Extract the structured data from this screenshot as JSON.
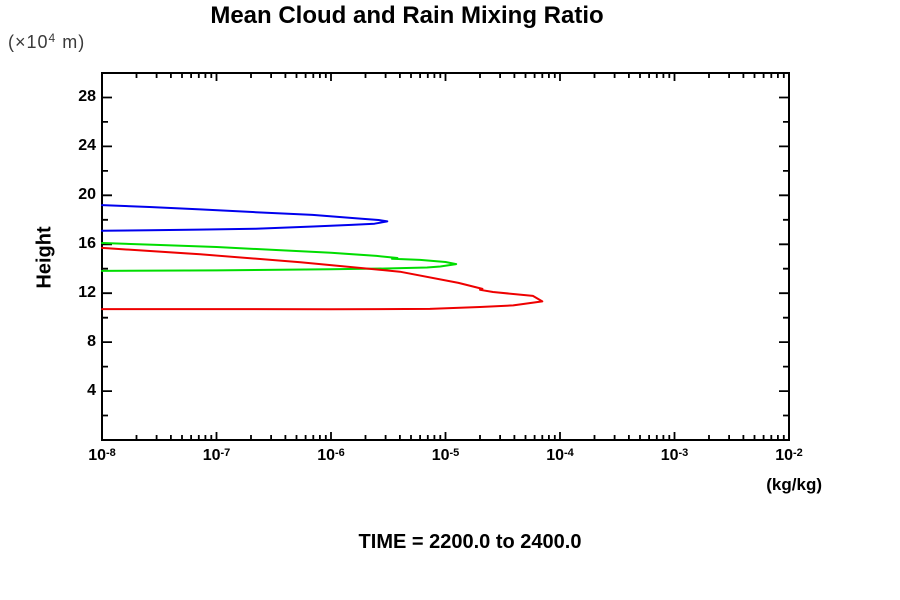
{
  "page": {
    "background": "#ffffff",
    "text_color": "#000000"
  },
  "chart_data": {
    "type": "line",
    "title": "Mean Cloud and Rain Mixing Ratio",
    "annotation": "TIME = 2200.0 to 2400.0",
    "grid": false,
    "legend": "none",
    "frame": "box-with-inward-ticks",
    "x_axis": {
      "scale": "log",
      "unit_label": "(kg/kg)",
      "tick_base": "10",
      "tick_exponents": [
        -8,
        -7,
        -6,
        -5,
        -4,
        -3,
        -2
      ],
      "xlim_exponents": [
        -8,
        -2
      ],
      "minor_ticks_per_decade": [
        2,
        3,
        4,
        5,
        6,
        7,
        8,
        9
      ]
    },
    "y_axis": {
      "label": "Height",
      "unit_prefix": "(×10",
      "unit_exponent": "4",
      "unit_suffix": " m)",
      "major_ticks": [
        4,
        8,
        12,
        16,
        20,
        24,
        28
      ],
      "minor_tick_step": 2,
      "ylim": [
        0,
        30
      ]
    },
    "series": [
      {
        "id": "blue",
        "color": "#0000ee",
        "points": [
          [
            1e-08,
            19.2
          ],
          [
            2.6e-08,
            19.05
          ],
          [
            7.2e-08,
            18.85
          ],
          [
            2.2e-07,
            18.62
          ],
          [
            6.9e-07,
            18.4
          ],
          [
            1.8e-06,
            18.1
          ],
          [
            2.6e-06,
            17.98
          ],
          [
            3.1e-06,
            17.87
          ],
          [
            2.4e-06,
            17.68
          ],
          [
            1.5e-06,
            17.58
          ],
          [
            7e-07,
            17.45
          ],
          [
            2.2e-07,
            17.27
          ],
          [
            7e-08,
            17.2
          ],
          [
            2.6e-08,
            17.15
          ],
          [
            1e-08,
            17.1
          ]
        ]
      },
      {
        "id": "green",
        "color": "#00dd00",
        "points": [
          [
            1e-08,
            16.1
          ],
          [
            3e-08,
            15.95
          ],
          [
            1e-07,
            15.78
          ],
          [
            3e-07,
            15.55
          ],
          [
            1e-06,
            15.3
          ],
          [
            2.5e-06,
            15.05
          ],
          [
            3.8e-06,
            14.88
          ],
          [
            3.4e-06,
            14.82
          ],
          [
            6e-06,
            14.72
          ],
          [
            1e-05,
            14.55
          ],
          [
            1.24e-05,
            14.38
          ],
          [
            9e-06,
            14.18
          ],
          [
            6.9e-06,
            14.1
          ],
          [
            3e-06,
            14.02
          ],
          [
            1e-06,
            13.95
          ],
          [
            1e-07,
            13.86
          ],
          [
            1e-08,
            13.82
          ]
        ]
      },
      {
        "id": "red",
        "color": "#ee0000",
        "points": [
          [
            1e-08,
            15.7
          ],
          [
            7.2e-08,
            15.18
          ],
          [
            5.4e-07,
            14.53
          ],
          [
            4e-06,
            13.76
          ],
          [
            1.3e-05,
            12.84
          ],
          [
            2.1e-05,
            12.35
          ],
          [
            2e-05,
            12.28
          ],
          [
            2.6e-05,
            12.1
          ],
          [
            5.8e-05,
            11.78
          ],
          [
            7e-05,
            11.33
          ],
          [
            3.9e-05,
            11.0
          ],
          [
            2e-05,
            10.87
          ],
          [
            7.3e-06,
            10.72
          ],
          [
            1e-06,
            10.68
          ],
          [
            1e-07,
            10.7
          ],
          [
            1e-08,
            10.7
          ]
        ]
      }
    ]
  }
}
